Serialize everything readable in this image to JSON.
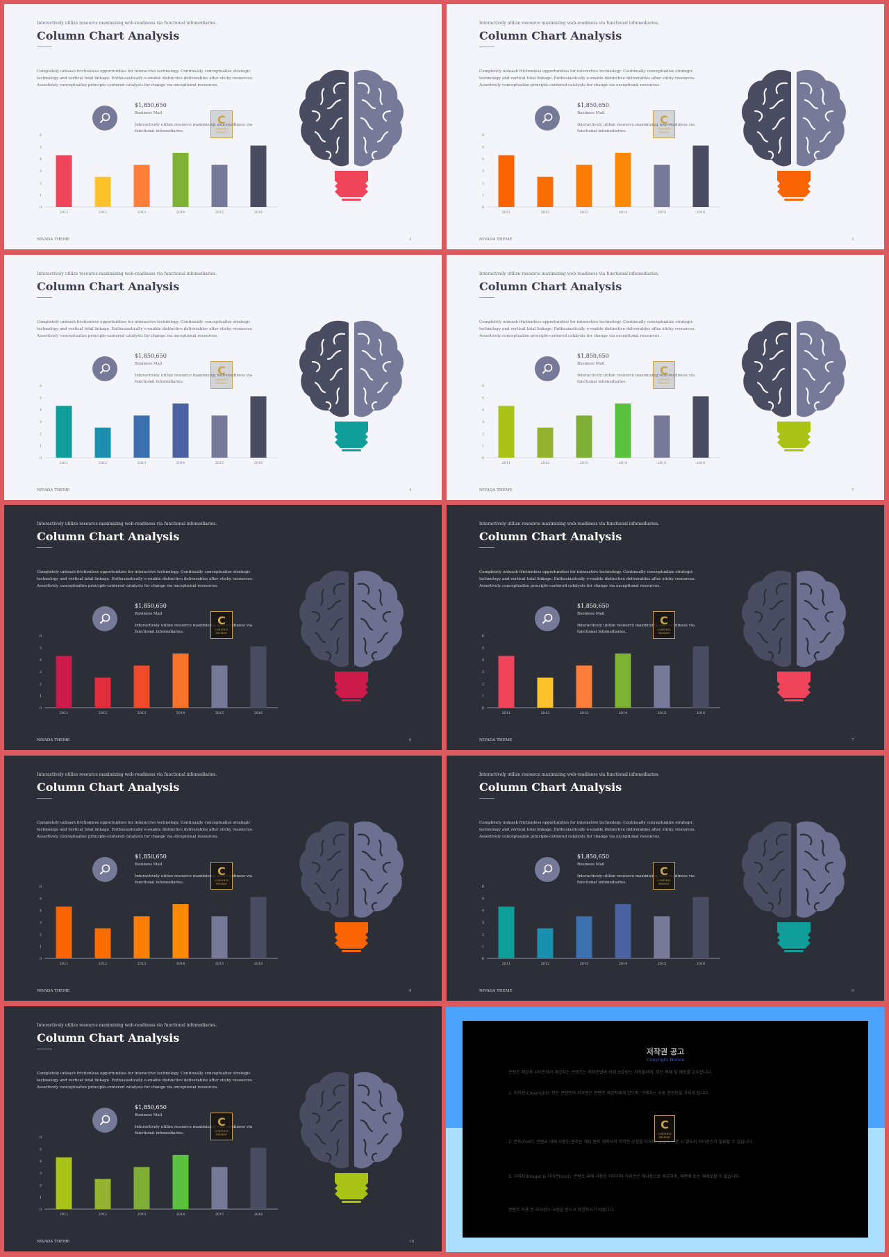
{
  "slide_common": {
    "tagline": "Interactively utilize resource maximizing web-readiness via functional infomediaries.",
    "title": "Column Chart Analysis",
    "description": "Completely unleash frictionless opportunities for interactive technology. Continually conceptualize strategic technology and vertical total linkage. Enthusiastically e-enable distinctive deliverables after sticky resources. Assertively conceptualize principle-centered catalysts for change via exceptional resources.",
    "amount": "$1,850,650",
    "amount_label": "Business Mail",
    "info_text": "Interactively utilize resource maximizing web-readiness via functional infomediaries.",
    "footer": "NIVADA THEME",
    "icon": "search-icon",
    "watermark": {
      "letter": "C",
      "line1": "CONTENTS",
      "line2": "PRESENT"
    }
  },
  "chart_data": {
    "type": "bar",
    "categories": [
      "2011",
      "2012",
      "2013",
      "2014",
      "2015",
      "2016"
    ],
    "values": [
      4.3,
      2.5,
      3.5,
      4.5,
      3.5,
      5.1
    ],
    "ylim": [
      0,
      6
    ],
    "yticks": [
      "0",
      "1",
      "2",
      "3",
      "4",
      "5",
      "6"
    ],
    "grid": false
  },
  "brain_colors": {
    "left": "#4a4c62",
    "right": "#767a98",
    "dark_left": "#4a4c62",
    "dark_right": "#6d7090"
  },
  "slides": [
    {
      "theme": "light",
      "page": "2",
      "bar_colors": [
        "#f0445a",
        "#fdc12b",
        "#fd7e3a",
        "#7eb234",
        "#767a98",
        "#4a4c62"
      ],
      "bulb": "#f0445a"
    },
    {
      "theme": "light",
      "page": "3",
      "bar_colors": [
        "#fb6402",
        "#fb6e04",
        "#fc7d05",
        "#fc8a06",
        "#767a98",
        "#4a4c62"
      ],
      "bulb": "#fb6402"
    },
    {
      "theme": "light",
      "page": "4",
      "bar_colors": [
        "#0f9e9a",
        "#1b8fae",
        "#3b6fad",
        "#4b62a0",
        "#767a98",
        "#4a4c62"
      ],
      "bulb": "#0f9e9a"
    },
    {
      "theme": "light",
      "page": "5",
      "bar_colors": [
        "#a9c417",
        "#96b32f",
        "#7fae37",
        "#5ac13f",
        "#767a98",
        "#4a4c62"
      ],
      "bulb": "#a9c417"
    },
    {
      "theme": "dark",
      "page": "6",
      "bar_colors": [
        "#cc1a4b",
        "#e12d3c",
        "#f0492c",
        "#f7732b",
        "#767a98",
        "#4a4c62"
      ],
      "bulb": "#cc1a4b"
    },
    {
      "theme": "dark",
      "page": "7",
      "bar_colors": [
        "#f0445a",
        "#fdc12b",
        "#fd7e3a",
        "#7eb234",
        "#767a98",
        "#4a4c62"
      ],
      "bulb": "#f0445a"
    },
    {
      "theme": "dark",
      "page": "8",
      "bar_colors": [
        "#fb6402",
        "#fb6e04",
        "#fc7d05",
        "#fc8a06",
        "#767a98",
        "#4a4c62"
      ],
      "bulb": "#fb6402"
    },
    {
      "theme": "dark",
      "page": "9",
      "bar_colors": [
        "#0f9e9a",
        "#1b8fae",
        "#3b6fad",
        "#4b62a0",
        "#767a98",
        "#4a4c62"
      ],
      "bulb": "#0f9e9a"
    },
    {
      "theme": "dark",
      "page": "10",
      "bar_colors": [
        "#a9c417",
        "#96b32f",
        "#7fae37",
        "#5ac13f",
        "#767a98",
        "#4a4c62"
      ],
      "bulb": "#a9c417"
    }
  ],
  "copyright": {
    "title": "저작권 공고",
    "subtitle": "Copyright Notice",
    "paragraphs": [
      "콘텐츠 제공자 사이트에서 제공되는 콘텐츠는 저작권법에 의해 보호받는 저작물이며, 무단 복제 및 배포를 금지합니다.",
      "1. 저작권(Copyright): 모든 콘텐츠의 저작권은 콘텐츠 제공자에게 있으며, 구매자는 사용 권한만을 가지게 됩니다.",
      "2. 폰트(Font): 콘텐츠 내에 사용된 폰트는 해당 폰트 제작사의 저작권 규정을 따르며, 상업적 이용 시 별도의 라이선스가 필요할 수 있습니다.",
      "3. 이미지(Image) & 아이콘(Icon): 콘텐츠 내에 사용된 이미지와 아이콘은 예시용으로 제공되며, 재판매 또는 재배포할 수 없습니다.",
      "콘텐츠 사용 전 라이선스 규정을 반드시 확인하시기 바랍니다."
    ]
  }
}
